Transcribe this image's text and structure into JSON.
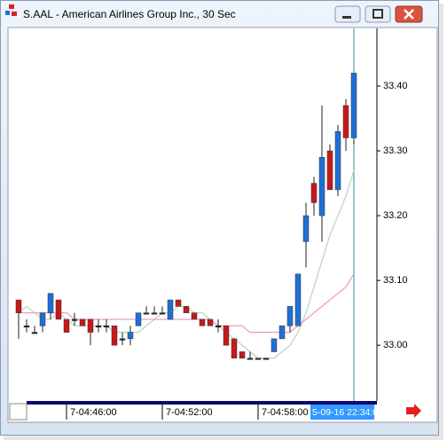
{
  "title": "S.AAL - American Airlines Group Inc., 30 Sec",
  "chart_data": {
    "type": "candlestick",
    "categories": [
      null,
      null,
      null,
      null,
      null,
      null,
      "7-04:46:00",
      null,
      null,
      null,
      null,
      null,
      null,
      null,
      null,
      null,
      null,
      null,
      "7-04:52:00",
      null,
      null,
      null,
      null,
      null,
      null,
      null,
      null,
      null,
      null,
      null,
      "7-04:58:00",
      null,
      null,
      null,
      null,
      null,
      null,
      null,
      null,
      null,
      null,
      null,
      null
    ],
    "open": [
      33.07,
      33.03,
      33.02,
      33.03,
      33.05,
      33.07,
      33.04,
      33.04,
      33.04,
      33.04,
      33.03,
      33.03,
      33.03,
      33.01,
      33.01,
      33.03,
      33.05,
      33.05,
      33.05,
      33.04,
      33.07,
      33.06,
      33.05,
      33.04,
      33.04,
      33.03,
      33.03,
      33.01,
      32.99,
      32.98,
      32.98,
      32.98,
      32.99,
      33.01,
      33.03,
      33.03,
      33.16,
      33.25,
      33.2,
      33.3,
      33.24,
      33.37,
      33.32
    ],
    "high": [
      33.07,
      33.04,
      33.03,
      33.05,
      33.08,
      33.07,
      33.04,
      33.05,
      33.04,
      33.04,
      33.04,
      33.04,
      33.03,
      33.02,
      33.03,
      33.05,
      33.06,
      33.06,
      33.06,
      33.07,
      33.07,
      33.06,
      33.05,
      33.04,
      33.04,
      33.04,
      33.03,
      33.01,
      32.99,
      32.99,
      32.98,
      32.98,
      33.01,
      33.03,
      33.06,
      33.11,
      33.22,
      33.26,
      33.37,
      33.31,
      33.34,
      33.38,
      33.42
    ],
    "low": [
      33.01,
      33.02,
      33.02,
      33.02,
      33.04,
      33.04,
      33.02,
      33.03,
      33.03,
      33.0,
      33.02,
      33.02,
      33.0,
      33.0,
      33.0,
      33.03,
      33.05,
      33.05,
      33.05,
      33.04,
      33.06,
      33.05,
      33.04,
      33.03,
      33.03,
      33.02,
      33.0,
      32.98,
      32.98,
      32.98,
      32.98,
      32.98,
      32.99,
      33.01,
      33.02,
      33.03,
      33.12,
      33.2,
      33.16,
      33.24,
      33.23,
      33.3,
      33.31
    ],
    "close": [
      33.05,
      33.03,
      33.02,
      33.05,
      33.08,
      33.04,
      33.02,
      33.04,
      33.03,
      33.02,
      33.03,
      33.03,
      33.0,
      33.01,
      33.02,
      33.05,
      33.05,
      33.05,
      33.05,
      33.07,
      33.06,
      33.05,
      33.04,
      33.03,
      33.03,
      33.03,
      33.0,
      32.98,
      32.98,
      32.98,
      32.98,
      32.98,
      33.01,
      33.03,
      33.06,
      33.11,
      33.2,
      33.22,
      33.29,
      33.24,
      33.33,
      33.32,
      33.42
    ],
    "up_color": "#1f6fd6",
    "down_color": "#c8181b",
    "series": [
      {
        "color": "#b9dcb9",
        "values": [
          33.05,
          33.06,
          33.05,
          33.04,
          33.04,
          33.05,
          33.04,
          33.03,
          33.03,
          33.03,
          33.03,
          33.03,
          33.02,
          33.02,
          33.02,
          33.02,
          33.03,
          33.04,
          33.05,
          33.05,
          33.06,
          33.06,
          33.05,
          33.05,
          33.04,
          33.03,
          33.02,
          33.01,
          33.0,
          32.99,
          32.98,
          32.98,
          32.98,
          32.99,
          33.0,
          33.02,
          33.05,
          33.09,
          33.13,
          33.17,
          33.2,
          33.23,
          33.27
        ]
      },
      {
        "color": "#f09ac8",
        "values": [
          33.05,
          33.05,
          33.05,
          33.05,
          33.05,
          33.05,
          33.05,
          33.04,
          33.04,
          33.04,
          33.04,
          33.04,
          33.04,
          33.04,
          33.04,
          33.04,
          33.04,
          33.04,
          33.04,
          33.04,
          33.04,
          33.04,
          33.04,
          33.04,
          33.04,
          33.03,
          33.03,
          33.03,
          33.03,
          33.02,
          33.02,
          33.02,
          33.02,
          33.02,
          33.02,
          33.03,
          33.04,
          33.05,
          33.06,
          33.07,
          33.08,
          33.09,
          33.11
        ]
      }
    ],
    "ylim": [
      32.914,
      33.489
    ],
    "yticks": [
      {
        "value": 33.0,
        "label": "33.00"
      },
      {
        "value": 33.1,
        "label": "33.10"
      },
      {
        "value": 33.2,
        "label": "33.20"
      },
      {
        "value": 33.3,
        "label": "33.30"
      },
      {
        "value": 33.4,
        "label": "33.40"
      }
    ],
    "cursor_label": "5-09-16 22:34:00"
  }
}
